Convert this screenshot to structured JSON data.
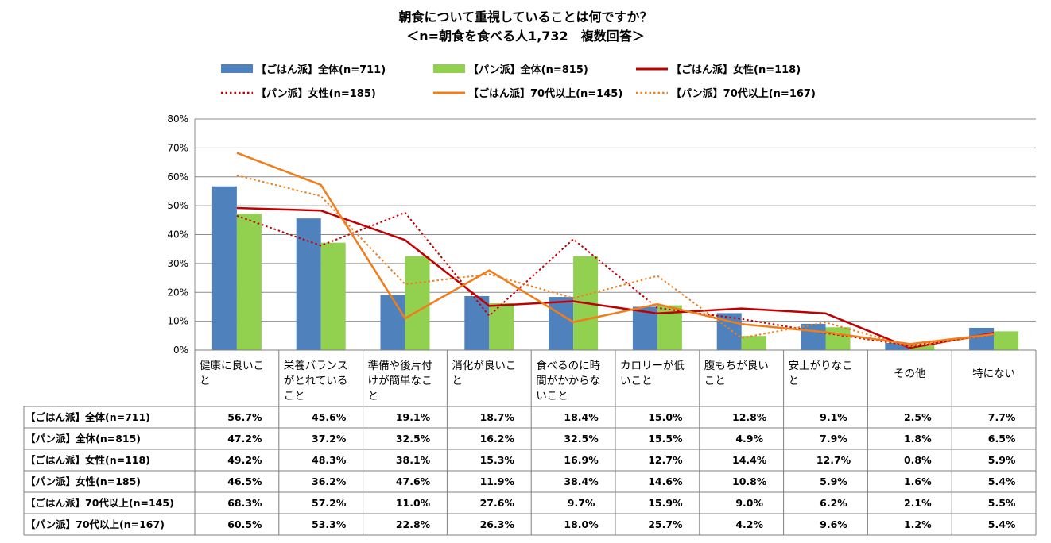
{
  "chart_data": {
    "type": "bar",
    "title": "朝食について重視していることは何ですか？",
    "subtitle": "＜n=朝食を食べる人1,732　複数回答＞",
    "categories": [
      [
        "健康に良いこ",
        "と"
      ],
      [
        "栄養バランス",
        "がとれている",
        "こと"
      ],
      [
        "準備や後片付",
        "けが簡単なこ",
        "と"
      ],
      [
        "消化が良いこ",
        "と"
      ],
      [
        "食べるのに時",
        "間がかからな",
        "いこと"
      ],
      [
        "カロリーが低",
        "いこと"
      ],
      [
        "腹もちが良い",
        "こと"
      ],
      [
        "安上がりなこ",
        "と"
      ],
      [
        "その他"
      ],
      [
        "特にない"
      ]
    ],
    "ylim": [
      0,
      80
    ],
    "yticks": [
      "0%",
      "10%",
      "20%",
      "30%",
      "40%",
      "50%",
      "60%",
      "70%",
      "80%"
    ],
    "grid": true,
    "legend_position": "top",
    "series": [
      {
        "name": "【ごはん派】全体(n=711)",
        "kind": "bar",
        "color": "#4F81BD",
        "values": [
          56.7,
          45.6,
          19.1,
          18.7,
          18.4,
          15.0,
          12.8,
          9.1,
          2.5,
          7.7
        ],
        "labels": [
          "56.7%",
          "45.6%",
          "19.1%",
          "18.7%",
          "18.4%",
          "15.0%",
          "12.8%",
          "9.1%",
          "2.5%",
          "7.7%"
        ]
      },
      {
        "name": "【パン派】全体(n=815)",
        "kind": "bar",
        "color": "#92D050",
        "values": [
          47.2,
          37.2,
          32.5,
          16.2,
          32.5,
          15.5,
          4.9,
          7.9,
          1.8,
          6.5
        ],
        "labels": [
          "47.2%",
          "37.2%",
          "32.5%",
          "16.2%",
          "32.5%",
          "15.5%",
          "4.9%",
          "7.9%",
          "1.8%",
          "6.5%"
        ]
      },
      {
        "name": "【ごはん派】女性(n=118)",
        "kind": "line",
        "color": "#C00000",
        "dash": "solid",
        "values": [
          49.2,
          48.3,
          38.1,
          15.3,
          16.9,
          12.7,
          14.4,
          12.7,
          0.8,
          5.9
        ],
        "labels": [
          "49.2%",
          "48.3%",
          "38.1%",
          "15.3%",
          "16.9%",
          "12.7%",
          "14.4%",
          "12.7%",
          "0.8%",
          "5.9%"
        ]
      },
      {
        "name": "【パン派】女性(n=185)",
        "kind": "line",
        "color": "#C00000",
        "dash": "dotted",
        "values": [
          46.5,
          36.2,
          47.6,
          11.9,
          38.4,
          14.6,
          10.8,
          5.9,
          1.6,
          5.4
        ],
        "labels": [
          "46.5%",
          "36.2%",
          "47.6%",
          "11.9%",
          "38.4%",
          "14.6%",
          "10.8%",
          "5.9%",
          "1.6%",
          "5.4%"
        ]
      },
      {
        "name": "【ごはん派】70代以上(n=145)",
        "kind": "line",
        "color": "#F07D1A",
        "dash": "solid",
        "values": [
          68.3,
          57.2,
          11.0,
          27.6,
          9.7,
          15.9,
          9.0,
          6.2,
          2.1,
          5.5
        ],
        "labels": [
          "68.3%",
          "57.2%",
          "11.0%",
          "27.6%",
          "9.7%",
          "15.9%",
          "9.0%",
          "6.2%",
          "2.1%",
          "5.5%"
        ]
      },
      {
        "name": "【パン派】70代以上(n=167)",
        "kind": "line",
        "color": "#F07D1A",
        "dash": "dotted",
        "values": [
          60.5,
          53.3,
          22.8,
          26.3,
          18.0,
          25.7,
          4.2,
          9.6,
          1.2,
          5.4
        ],
        "labels": [
          "60.5%",
          "53.3%",
          "22.8%",
          "26.3%",
          "18.0%",
          "25.7%",
          "4.2%",
          "9.6%",
          "1.2%",
          "5.4%"
        ]
      }
    ]
  }
}
